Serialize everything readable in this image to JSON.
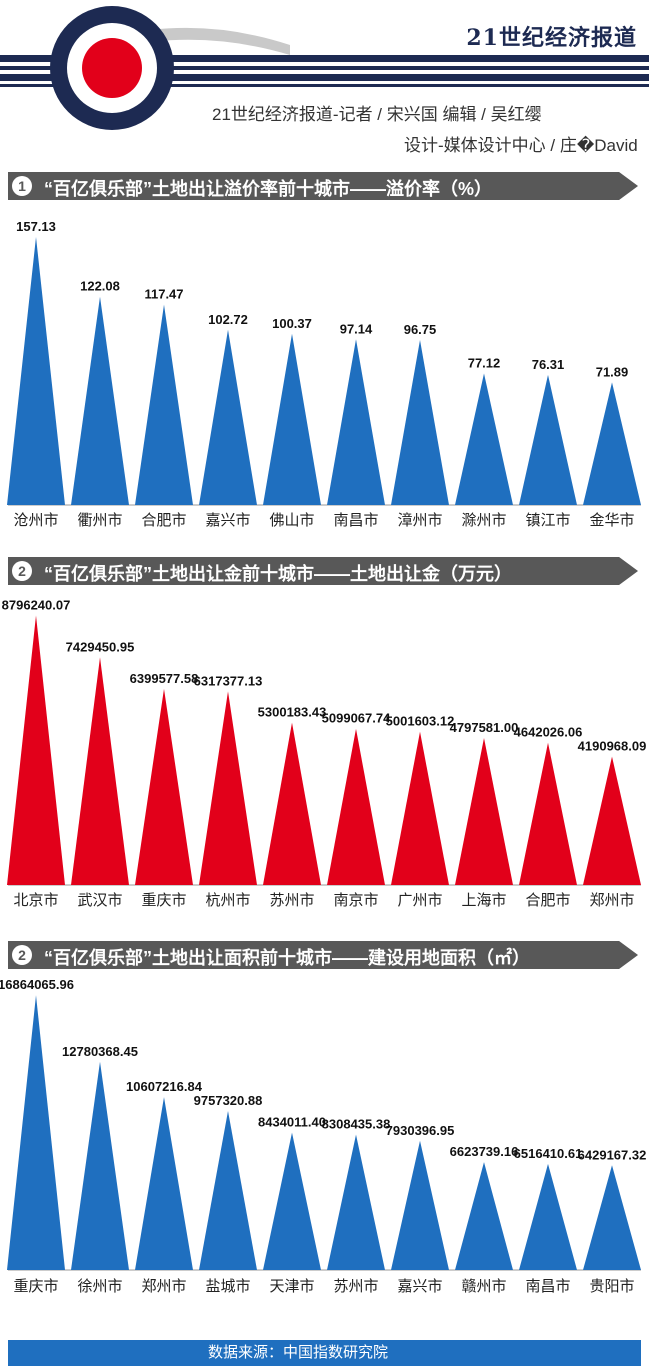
{
  "header": {
    "brand": "21世纪经济报道",
    "credit_line1": "21世纪经济报道-记者 / 宋兴国    编辑 / 吴红缨",
    "credit_line2": "设计-媒体设计中心 / 庄�David"
  },
  "colors": {
    "blue": "#1f6fbf",
    "red": "#e2001a",
    "bar": "#585858",
    "navy": "#1d2a52"
  },
  "sections": [
    {
      "badge": "1",
      "title": "“百亿俱乐部”土地出让溢价率前十城市——溢价率（%）"
    },
    {
      "badge": "2",
      "title": "“百亿俱乐部”土地出让金前十城市——土地出让金（万元）"
    },
    {
      "badge": "2",
      "title": "“百亿俱乐部”土地出让面积前十城市——建设用地面积（㎡）"
    }
  ],
  "chart_data": [
    {
      "type": "bar",
      "categories": [
        "沧州市",
        "衢州市",
        "合肥市",
        "嘉兴市",
        "佛山市",
        "南昌市",
        "漳州市",
        "滁州市",
        "镇江市",
        "金华市"
      ],
      "values": [
        157.13,
        122.08,
        117.47,
        102.72,
        100.37,
        97.14,
        96.75,
        77.12,
        76.31,
        71.89
      ],
      "value_labels": [
        "157.13",
        "122.08",
        "117.47",
        "102.72",
        "100.37",
        "97.14",
        "96.75",
        "77.12",
        "76.31",
        "71.89"
      ],
      "color": "#1f6fbf",
      "ylim": [
        0,
        170
      ]
    },
    {
      "type": "bar",
      "categories": [
        "北京市",
        "武汉市",
        "重庆市",
        "杭州市",
        "苏州市",
        "南京市",
        "广州市",
        "上海市",
        "合肥市",
        "郑州市"
      ],
      "values": [
        8796240.07,
        7429450.95,
        6399577.58,
        6317377.13,
        5300183.43,
        5099067.74,
        5001603.12,
        4797581.0,
        4642026.06,
        4190968.09
      ],
      "value_labels": [
        "8796240.07",
        "7429450.95",
        "6399577.58",
        "6317377.13",
        "5300183.43",
        "5099067.74",
        "5001603.12",
        "4797581.00",
        "4642026.06",
        "4190968.09"
      ],
      "color": "#e2001a",
      "ylim": [
        0,
        9300000
      ]
    },
    {
      "type": "bar",
      "categories": [
        "重庆市",
        "徐州市",
        "郑州市",
        "盐城市",
        "天津市",
        "苏州市",
        "嘉兴市",
        "赣州市",
        "南昌市",
        "贵阳市"
      ],
      "values": [
        16864065.96,
        12780368.45,
        10607216.84,
        9757320.88,
        8434011.4,
        8308435.38,
        7930396.95,
        6623739.16,
        6516410.61,
        6429167.32
      ],
      "value_labels": [
        "16864065.96",
        "12780368.45",
        "10607216.84",
        "9757320.88",
        "8434011.40",
        "8308435.38",
        "7930396.95",
        "6623739.16",
        "6516410.61",
        "6429167.32"
      ],
      "color": "#1f6fbf",
      "ylim": [
        0,
        17800000
      ]
    }
  ],
  "footer": {
    "source": "数据来源：中国指数研究院"
  }
}
